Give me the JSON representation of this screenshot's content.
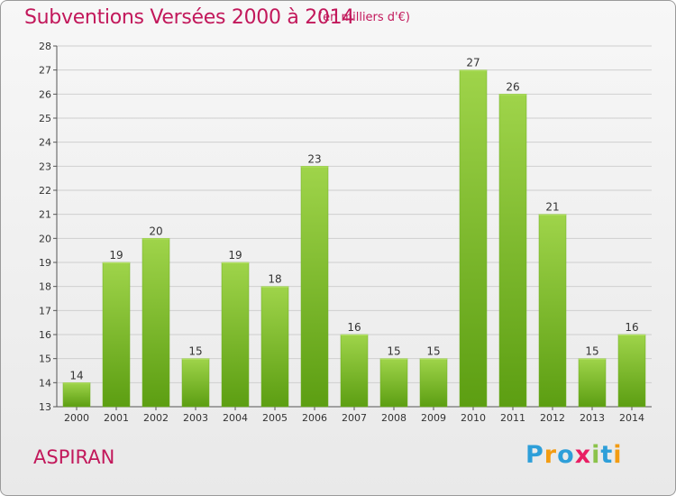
{
  "header": {
    "title": "Subventions Versées 2000 à 2014",
    "subtitle": "(en milliers d'€)"
  },
  "footer": {
    "town": "ASPIRAN",
    "logo_letters": [
      "P",
      "r",
      "o",
      "x",
      "i",
      "t",
      "i"
    ]
  },
  "colors": {
    "bar_top": "#9fd44a",
    "bar_bottom": "#5c9e12",
    "title": "#c2185b",
    "axis": "#555555",
    "grid": "#cfcfcf",
    "logo": [
      "#2e9fd9",
      "#f39c12",
      "#2e9fd9",
      "#e91e63",
      "#8bc34a",
      "#2e9fd9",
      "#f39c12"
    ]
  },
  "chart_data": {
    "type": "bar",
    "categories": [
      "2000",
      "2001",
      "2002",
      "2003",
      "2004",
      "2005",
      "2006",
      "2007",
      "2008",
      "2009",
      "2010",
      "2011",
      "2012",
      "2013",
      "2014"
    ],
    "values": [
      14,
      19,
      20,
      15,
      19,
      18,
      23,
      16,
      15,
      15,
      27,
      26,
      21,
      15,
      16
    ],
    "title": "Subventions Versées 2000 à 2014",
    "ylim": [
      13,
      28
    ],
    "yticks": [
      13,
      14,
      15,
      16,
      17,
      18,
      19,
      20,
      21,
      22,
      23,
      24,
      25,
      26,
      27,
      28
    ],
    "grid": true,
    "data_labels": true
  }
}
